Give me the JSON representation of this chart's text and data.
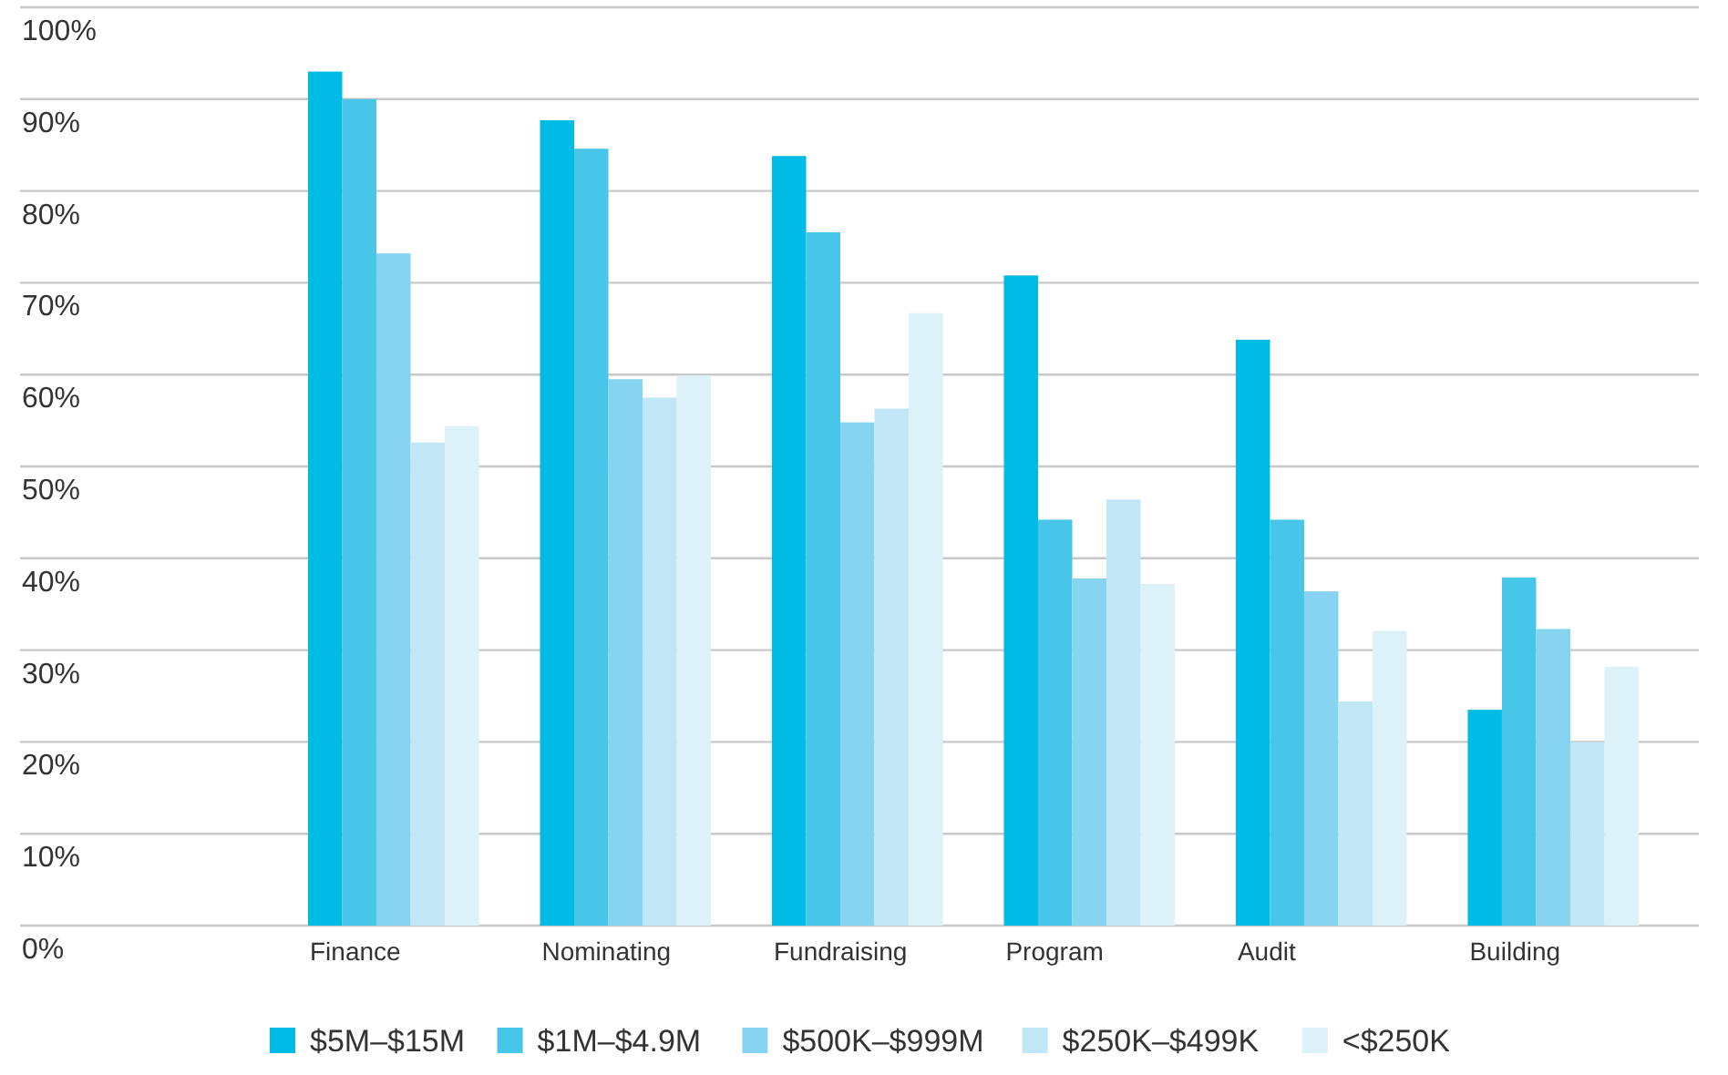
{
  "chart_data": {
    "type": "bar",
    "categories": [
      "Finance",
      "Nominating",
      "Fundraising",
      "Program",
      "Audit",
      "Building"
    ],
    "series": [
      {
        "name": "$5M–$15M",
        "color": "#00bce4",
        "values": [
          93,
          87.7,
          83.8,
          70.8,
          63.8,
          23.5
        ]
      },
      {
        "name": "$1M–$4.9M",
        "color": "#48c6e9",
        "values": [
          90,
          84.6,
          75.5,
          44.2,
          44.2,
          37.9
        ]
      },
      {
        "name": "$500K–$999M",
        "color": "#86d4ef",
        "values": [
          73.2,
          59.5,
          54.8,
          37.8,
          36.4,
          32.3
        ]
      },
      {
        "name": "$250K–$499K",
        "color": "#c1e6f5",
        "values": [
          52.6,
          57.5,
          56.3,
          46.4,
          24.4,
          20
        ]
      },
      {
        "name": "<$250K",
        "color": "#ddf1f8",
        "values": [
          54.4,
          59.9,
          66.7,
          37.2,
          32.1,
          28.2
        ]
      }
    ],
    "ylim": [
      0,
      100
    ],
    "yticks": [
      {
        "value": 0,
        "label": "0%"
      },
      {
        "value": 10,
        "label": "10%"
      },
      {
        "value": 20,
        "label": "20%"
      },
      {
        "value": 30,
        "label": "30%"
      },
      {
        "value": 40,
        "label": "40%"
      },
      {
        "value": 50,
        "label": "50%"
      },
      {
        "value": 60,
        "label": "60%"
      },
      {
        "value": 70,
        "label": "70%"
      },
      {
        "value": 80,
        "label": "80%"
      },
      {
        "value": 90,
        "label": "90%"
      },
      {
        "value": 100,
        "label": "100%"
      }
    ],
    "grid": "y",
    "legend": "bottom"
  }
}
